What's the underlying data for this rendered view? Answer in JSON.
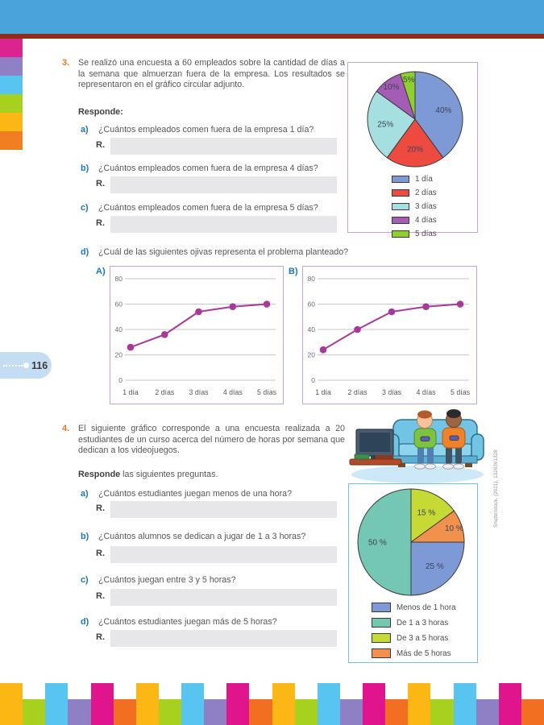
{
  "page_number": "116",
  "credit": "Shutterstock, (2021). 1326361328",
  "left_strip_colors": [
    "#dc2490",
    "#8f7fc4",
    "#58c5f0",
    "#a8d01f",
    "#fdb714",
    "#f07f22"
  ],
  "footer": {
    "colors": [
      "#fdb714",
      "#a8d01f",
      "#58c5f0",
      "#8f7fc4",
      "#e0148c",
      "#f26f21"
    ],
    "bar_count": 24
  },
  "exercise3": {
    "number": "3.",
    "statement": "Se realizó una encuesta a 60 empleados sobre la cantidad de días a la semana que almuerzan fuera de la empresa. Los resultados se representaron en el gráfico circular adjunto.",
    "respond_label": "Responde:",
    "questions": [
      {
        "letter": "a)",
        "text": "¿Cuántos empleados comen fuera de la empresa 1 día?",
        "answer_label": "R."
      },
      {
        "letter": "b)",
        "text": "¿Cuántos empleados comen fuera de la empresa 4 días?",
        "answer_label": "R."
      },
      {
        "letter": "c)",
        "text": "¿Cuántos empleados comen fuera de la empresa 5 días?",
        "answer_label": "R."
      },
      {
        "letter": "d)",
        "text": "¿Cuál de las siguientes ojivas representa el problema planteado?"
      }
    ]
  },
  "exercise4": {
    "number": "4.",
    "statement": "El siguiente gráfico corresponde a una encuesta realizada a 20 estudiantes de un curso acerca del número de horas por semana que dedican a los videojuegos.",
    "respond_bold": "Responde",
    "respond_rest": " las siguientes preguntas.",
    "questions": [
      {
        "letter": "a)",
        "text": "¿Cuántos estudiantes juegan menos de una hora?",
        "answer_label": "R."
      },
      {
        "letter": "b)",
        "text": "¿Cuántos alumnos se dedican a jugar de 1 a 3 horas?",
        "answer_label": "R."
      },
      {
        "letter": "c)",
        "text": "¿Cuántos juegan entre 3 y 5 horas?",
        "answer_label": "R."
      },
      {
        "letter": "d)",
        "text": "¿Cuántos estudiantes juegan más de 5 horas?",
        "answer_label": "R."
      }
    ]
  },
  "chart_data": [
    {
      "id": "pie-days",
      "type": "pie",
      "title": "Días a la semana que almuerzan fuera de la empresa",
      "slices": [
        {
          "label": "1 día",
          "value": 40,
          "text": "40%",
          "color": "#7d99d6"
        },
        {
          "label": "2 días",
          "value": 20,
          "text": "20%",
          "color": "#ee4b40"
        },
        {
          "label": "3 días",
          "value": 25,
          "text": "25%",
          "color": "#a5dfdf"
        },
        {
          "label": "4 días",
          "value": 10,
          "text": "10%",
          "color": "#a55cb5"
        },
        {
          "label": "5 días",
          "value": 5,
          "text": "5%",
          "color": "#8ed02c"
        }
      ],
      "legend": [
        {
          "label": "1 día",
          "color": "#7d99d6"
        },
        {
          "label": "2 días",
          "color": "#ee4b40"
        },
        {
          "label": "3 días",
          "color": "#a5dfdf"
        },
        {
          "label": "4 días",
          "color": "#a55cb5"
        },
        {
          "label": "5 días",
          "color": "#8ed02c"
        }
      ],
      "legend_position": "bottom",
      "start_angle_deg": 0,
      "direction": "clockwise"
    },
    {
      "id": "ogive-a",
      "type": "line",
      "label": "A)",
      "x": [
        "1 día",
        "2 días",
        "3 días",
        "4 días",
        "5 días"
      ],
      "values": [
        26,
        36,
        54,
        58,
        60
      ],
      "yticks": [
        0,
        20,
        40,
        60,
        80
      ],
      "ylim": [
        0,
        80
      ],
      "line_color": "#a8399a",
      "grid": true
    },
    {
      "id": "ogive-b",
      "type": "line",
      "label": "B)",
      "x": [
        "1 día",
        "2 días",
        "3 días",
        "4 días",
        "5 días"
      ],
      "values": [
        24,
        40,
        54,
        58,
        60
      ],
      "yticks": [
        0,
        20,
        40,
        60,
        80
      ],
      "ylim": [
        0,
        80
      ],
      "line_color": "#a8399a",
      "grid": true
    },
    {
      "id": "pie-hours",
      "type": "pie",
      "title": "Horas por semana dedicadas a los videojuegos",
      "slices": [
        {
          "label": "De 3 a 5 horas",
          "value": 15,
          "text": "15 %",
          "color": "#c6d934"
        },
        {
          "label": "Más de 5 horas",
          "value": 10,
          "text": "10 %",
          "color": "#f2914e"
        },
        {
          "label": "Menos de 1 hora",
          "value": 25,
          "text": "25 %",
          "color": "#7d99d6"
        },
        {
          "label": "De 1 a 3 horas",
          "value": 50,
          "text": "50 %",
          "color": "#74c7b2"
        }
      ],
      "legend": [
        {
          "label": "Menos de 1 hora",
          "color": "#7d99d6"
        },
        {
          "label": "De 1 a 3 horas",
          "color": "#74c7b2"
        },
        {
          "label": "De 3 a 5 horas",
          "color": "#c6d934"
        },
        {
          "label": "Más de 5 horas",
          "color": "#f2914e"
        }
      ],
      "legend_position": "bottom",
      "start_angle_deg": 0,
      "direction": "clockwise"
    }
  ]
}
